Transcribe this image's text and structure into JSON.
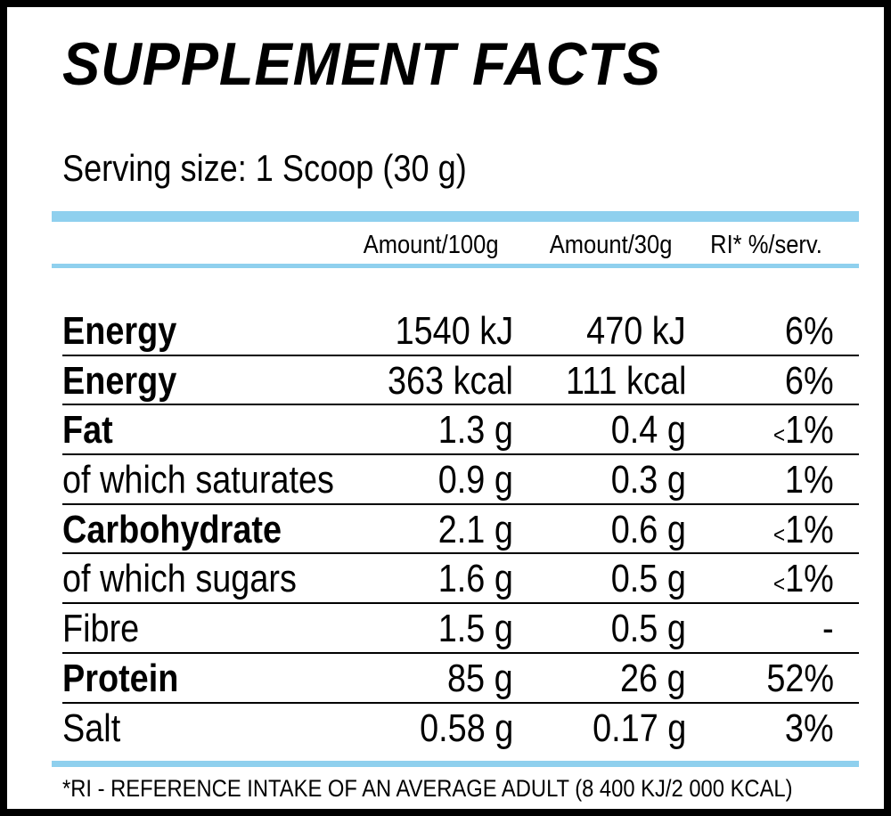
{
  "title": "SUPPLEMENT FACTS",
  "serving_size": "Serving size: 1 Scoop (30 g)",
  "columns": {
    "per100": "Amount/100g",
    "per30": "Amount/30g",
    "ri": "RI* %/serv."
  },
  "rows": [
    {
      "name": "Energy",
      "bold": true,
      "per100": "1540 kJ",
      "per30": "470 kJ",
      "ri": "6%",
      "ri_prefix": ""
    },
    {
      "name": "Energy",
      "bold": true,
      "per100": "363 kcal",
      "per30": "111 kcal",
      "ri": "6%",
      "ri_prefix": ""
    },
    {
      "name": "Fat",
      "bold": true,
      "per100": "1.3 g",
      "per30": "0.4 g",
      "ri": "1%",
      "ri_prefix": "<"
    },
    {
      "name": "of which saturates",
      "bold": false,
      "per100": "0.9 g",
      "per30": "0.3 g",
      "ri": "1%",
      "ri_prefix": ""
    },
    {
      "name": "Carbohydrate",
      "bold": true,
      "per100": "2.1 g",
      "per30": "0.6 g",
      "ri": "1%",
      "ri_prefix": "<"
    },
    {
      "name": "of which sugars",
      "bold": false,
      "per100": "1.6 g",
      "per30": "0.5 g",
      "ri": "1%",
      "ri_prefix": "<"
    },
    {
      "name": "Fibre",
      "bold": false,
      "per100": "1.5 g",
      "per30": "0.5 g",
      "ri": "-",
      "ri_prefix": ""
    },
    {
      "name": "Protein",
      "bold": true,
      "per100": "85 g",
      "per30": "26 g",
      "ri": "52%",
      "ri_prefix": ""
    },
    {
      "name": "Salt",
      "bold": false,
      "per100": "0.58 g",
      "per30": "0.17 g",
      "ri": "3%",
      "ri_prefix": ""
    }
  ],
  "footnote": "*RI - REFERENCE INTAKE OF AN AVERAGE ADULT (8 400 KJ/2 000 KCAL)",
  "colors": {
    "accent_bar": "#8fd0ee",
    "text": "#000000",
    "border": "#000000"
  }
}
